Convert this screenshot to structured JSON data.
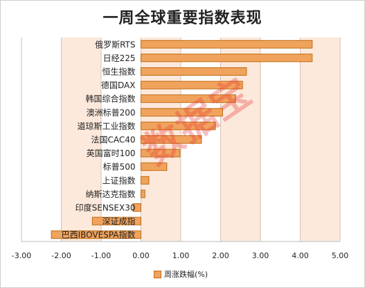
{
  "chart_data": {
    "type": "bar",
    "orientation": "horizontal",
    "title": "一周全球重要指数表现",
    "categories": [
      "俄罗斯RTS",
      "日经225",
      "恒生指数",
      "德国DAX",
      "韩国综合指数",
      "澳洲标普200",
      "道琼斯工业指数",
      "法国CAC40",
      "英国富时100",
      "标普500",
      "上证指数",
      "纳斯达克指数",
      "印度SENSEX30",
      "深证成指",
      "巴西IBOVESPA指数"
    ],
    "series": [
      {
        "name": "周涨跌幅(%)",
        "values": [
          4.3,
          4.3,
          2.65,
          2.55,
          2.38,
          2.05,
          1.87,
          1.52,
          0.98,
          0.65,
          0.2,
          0.1,
          -0.2,
          -1.22,
          -2.25
        ]
      }
    ],
    "xlim": [
      -3,
      5
    ],
    "xticks": [
      "-3.00",
      "-2.00",
      "-1.00",
      "0.00",
      "1.00",
      "2.00",
      "3.00",
      "4.00",
      "5.00"
    ],
    "legend": "bottom",
    "grid": "vertical"
  },
  "colors": {
    "bar_fill": "#f0a35d",
    "bar_edge": "#c06a10",
    "stripe": "#fce9dc",
    "grid": "#d6c2b4"
  },
  "watermark": "数据宝"
}
